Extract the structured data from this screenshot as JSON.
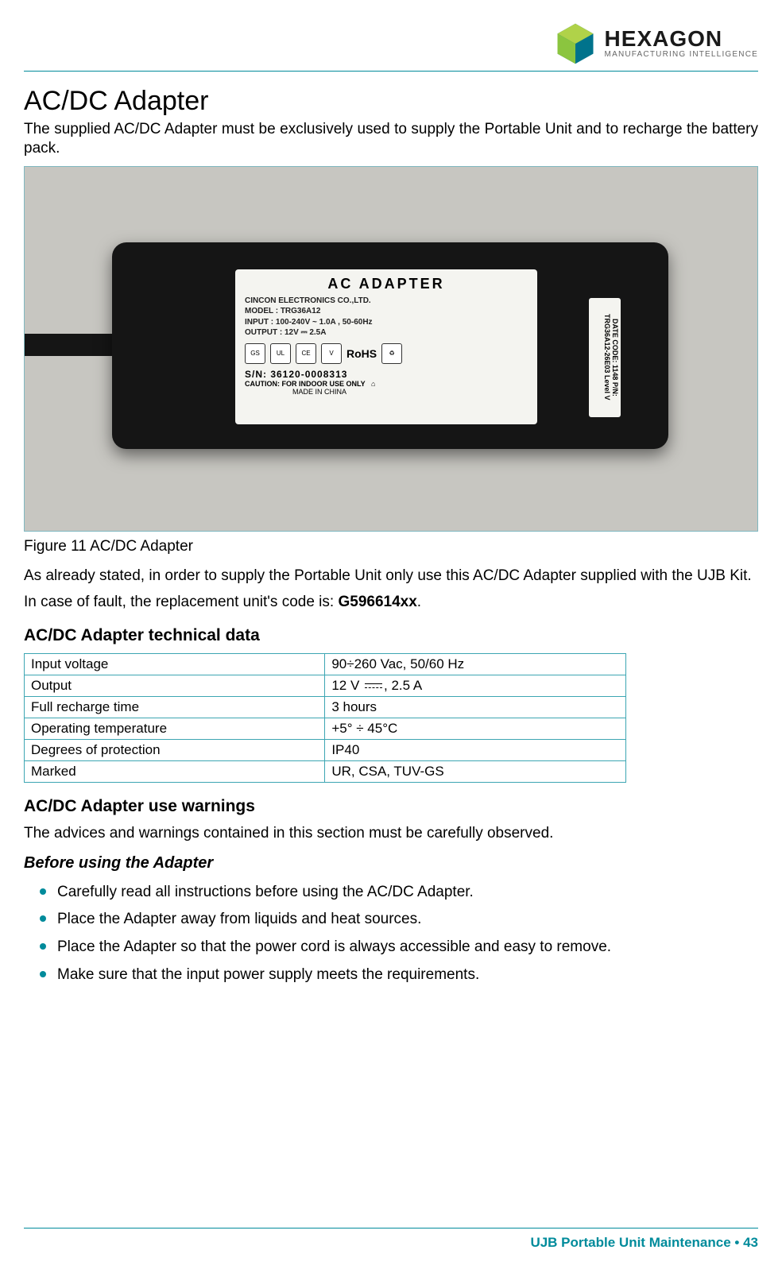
{
  "brand": {
    "name": "HEXAGON",
    "tagline": "MANUFACTURING INTELLIGENCE",
    "logo_colors": {
      "left": "#8bc53f",
      "right": "#00738c",
      "top": "#b0d249"
    }
  },
  "title": "AC/DC Adapter",
  "intro": "The supplied AC/DC Adapter must be exclusively used to supply the Portable Unit and to recharge the battery pack.",
  "figure": {
    "caption": "Figure 11 AC/DC Adapter",
    "label_title": "AC ADAPTER",
    "label_maker": "CINCON ELECTRONICS CO.,LTD.",
    "label_model": "MODEL : TRG36A12",
    "label_input": "INPUT : 100-240V ~ 1.0A , 50-60Hz",
    "label_output": "OUTPUT : 12V ⎓ 2.5A",
    "label_sn": "S/N: 36120-0008313",
    "label_caution": "CAUTION: FOR INDOOR USE ONLY",
    "label_origin": "MADE IN CHINA",
    "label_rohs": "RoHS",
    "side_label": "DATE CODE: 1148  P/N: TRG36A12-26E03 Level V"
  },
  "para2": "As already stated, in order to supply the Portable Unit only use this AC/DC Adapter supplied with the UJB Kit.",
  "para3_pre": "In case of fault, the replacement unit's code is: ",
  "para3_code": "G596614xx",
  "para3_post": ".",
  "tech": {
    "heading": "AC/DC Adapter technical data",
    "rows": [
      {
        "k": "Input voltage",
        "v": "90÷260 Vac, 50/60 Hz"
      },
      {
        "k": "Output",
        "v_pre": "12 V ",
        "v_post": ", 2.5 A",
        "dc_symbol": true
      },
      {
        "k": "Full recharge time",
        "v": "3 hours"
      },
      {
        "k": "Operating temperature",
        "v": "+5° ÷ 45°C"
      },
      {
        "k": "Degrees of protection",
        "v": "IP40"
      },
      {
        "k": "Marked",
        "v": "UR, CSA, TUV-GS"
      }
    ]
  },
  "warnings": {
    "heading": "AC/DC Adapter use warnings",
    "intro": "The advices and warnings contained in this section must be carefully observed.",
    "before_heading": "Before using the Adapter",
    "bullets": [
      "Carefully read all instructions before using the AC/DC Adapter.",
      "Place the Adapter away from liquids and heat sources.",
      "Place the Adapter so that the power cord is always accessible and easy to remove.",
      "Make sure that the input power supply meets the requirements."
    ]
  },
  "footer": {
    "text": "UJB Portable Unit Maintenance",
    "sep": "  •  ",
    "page": "43"
  },
  "colors": {
    "accent": "#008b9b",
    "table_border": "#3da6b3",
    "text": "#000000",
    "bg": "#ffffff"
  }
}
